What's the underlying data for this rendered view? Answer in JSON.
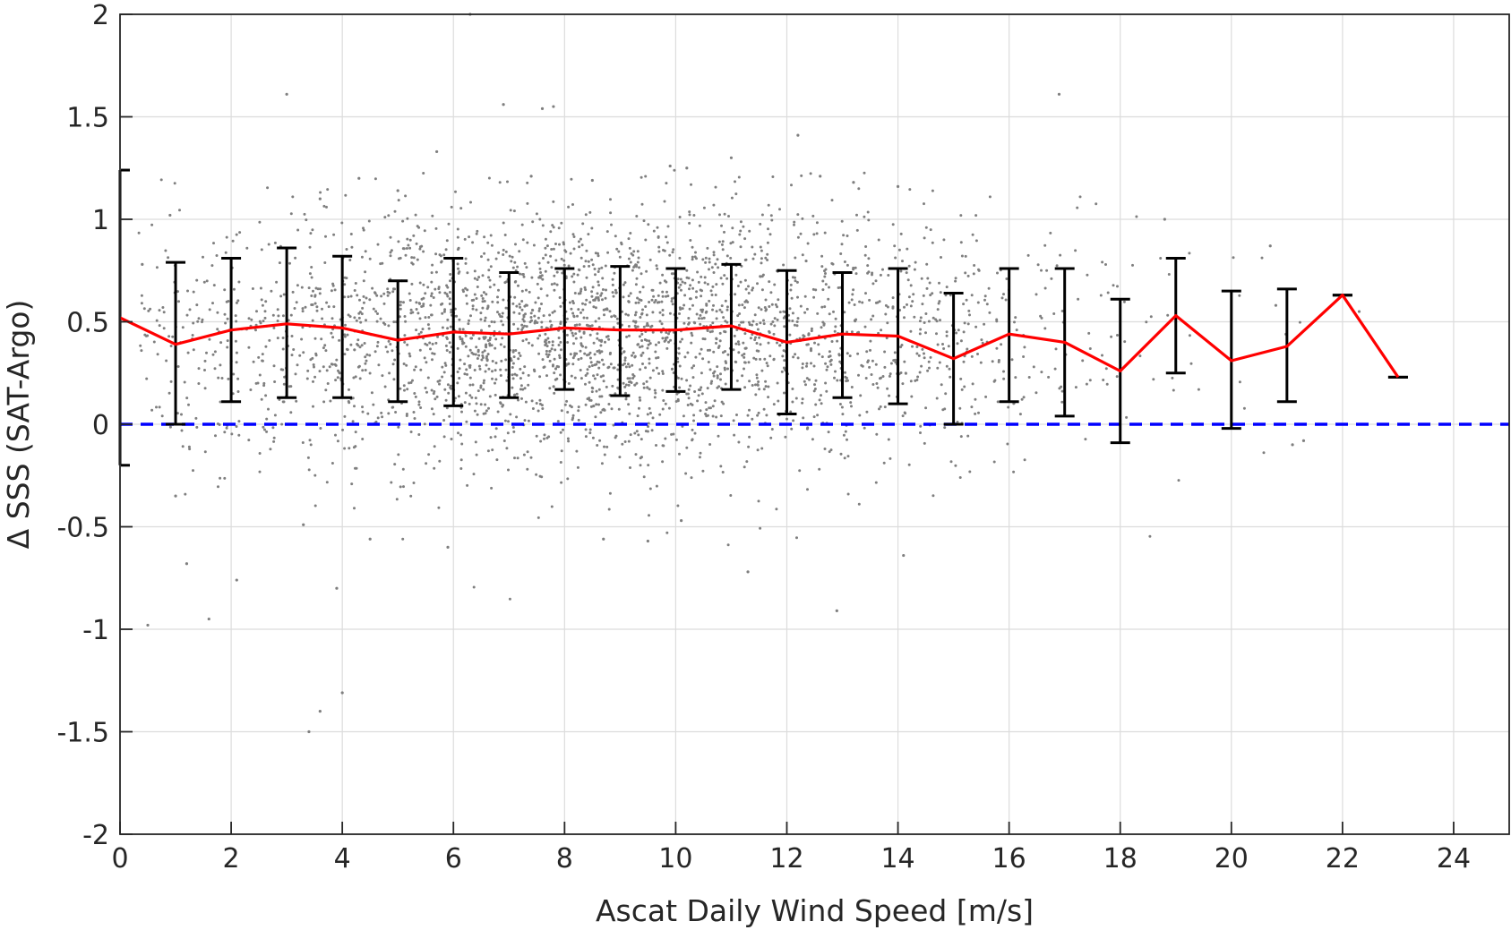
{
  "chart_data": {
    "type": "scatter",
    "xlabel": "Ascat Daily Wind Speed [m/s]",
    "ylabel": "Δ SSS (SAT-Argo)",
    "xlim": [
      0,
      25
    ],
    "ylim": [
      -2,
      2
    ],
    "x_ticks": [
      0,
      2,
      4,
      6,
      8,
      10,
      12,
      14,
      16,
      18,
      20,
      22,
      24
    ],
    "y_ticks": [
      -2,
      -1.5,
      -1,
      -0.5,
      0,
      0.5,
      1,
      1.5,
      2
    ],
    "x_tick_labels": [
      "0",
      "2",
      "4",
      "6",
      "8",
      "10",
      "12",
      "14",
      "16",
      "18",
      "20",
      "22",
      "24"
    ],
    "y_tick_labels": [
      "-2",
      "-1.5",
      "-1",
      "-0.5",
      "0",
      "0.5",
      "1",
      "1.5",
      "2"
    ],
    "grid": true,
    "reference_line": {
      "y": 0,
      "style": "dashed",
      "color": "#0000ff"
    },
    "mean_line": {
      "color": "#ff0000",
      "x": [
        0,
        1,
        2,
        3,
        4,
        5,
        6,
        7,
        8,
        9,
        10,
        11,
        12,
        13,
        14,
        15,
        16,
        17,
        18,
        19,
        20,
        21,
        22,
        23
      ],
      "y": [
        0.52,
        0.39,
        0.46,
        0.49,
        0.47,
        0.41,
        0.45,
        0.44,
        0.47,
        0.46,
        0.46,
        0.48,
        0.4,
        0.44,
        0.43,
        0.32,
        0.44,
        0.4,
        0.26,
        0.53,
        0.31,
        0.38,
        0.63,
        0.23
      ]
    },
    "error_bars": {
      "color": "#000000",
      "x": [
        0,
        1,
        2,
        3,
        4,
        5,
        6,
        7,
        8,
        9,
        10,
        11,
        12,
        13,
        14,
        15,
        16,
        17,
        18,
        19,
        20,
        21,
        22,
        23
      ],
      "lower": [
        -0.2,
        0.0,
        0.11,
        0.13,
        0.13,
        0.11,
        0.09,
        0.13,
        0.17,
        0.14,
        0.16,
        0.17,
        0.05,
        0.13,
        0.1,
        0.0,
        0.11,
        0.04,
        -0.09,
        0.25,
        -0.02,
        0.11,
        0.63,
        0.23
      ],
      "upper": [
        1.24,
        0.79,
        0.81,
        0.86,
        0.82,
        0.7,
        0.81,
        0.74,
        0.76,
        0.77,
        0.76,
        0.78,
        0.75,
        0.74,
        0.76,
        0.64,
        0.76,
        0.76,
        0.61,
        0.81,
        0.65,
        0.66,
        0.63,
        0.23
      ]
    },
    "scatter": {
      "color": "#7f7f7f",
      "points": [
        [
          0.4,
          0.78
        ],
        [
          0.5,
          -0.98
        ],
        [
          0.9,
          1.02
        ],
        [
          1.0,
          -0.35
        ],
        [
          1.2,
          -0.68
        ],
        [
          1.6,
          -0.95
        ],
        [
          2.1,
          -0.76
        ],
        [
          3.0,
          1.61
        ],
        [
          3.3,
          -0.49
        ],
        [
          3.4,
          -1.5
        ],
        [
          3.6,
          -1.4
        ],
        [
          3.9,
          -0.8
        ],
        [
          4.0,
          -1.31
        ],
        [
          4.5,
          -0.56
        ],
        [
          5.9,
          -0.6
        ],
        [
          5.7,
          1.33
        ],
        [
          6.9,
          1.56
        ],
        [
          7.6,
          1.54
        ],
        [
          7.8,
          1.55
        ],
        [
          8.7,
          -0.56
        ],
        [
          9.5,
          -0.57
        ],
        [
          10.1,
          -0.47
        ],
        [
          11.3,
          -0.72
        ],
        [
          12.2,
          1.41
        ],
        [
          12.9,
          -0.91
        ],
        [
          14.1,
          -0.64
        ],
        [
          16.9,
          1.61
        ],
        [
          18.8,
          1.0
        ],
        [
          20.7,
          0.87
        ],
        [
          21.3,
          -0.08
        ],
        [
          6.3,
          2.0
        ],
        [
          21.1,
          -0.1
        ],
        [
          20.8,
          0.58
        ],
        [
          22.3,
          0.55
        ],
        [
          9.9,
          1.26
        ],
        [
          10.2,
          1.25
        ],
        [
          11.0,
          1.3
        ],
        [
          12.6,
          1.21
        ],
        [
          13.2,
          1.18
        ],
        [
          14.0,
          1.16
        ],
        [
          5.0,
          1.14
        ],
        [
          4.3,
          1.2
        ],
        [
          3.6,
          1.1
        ],
        [
          7.4,
          1.21
        ],
        [
          8.5,
          1.19
        ]
      ],
      "generated_cloud": {
        "count": 3000,
        "center_y": 0.44,
        "spread_y": 0.32,
        "x_range": [
          0.3,
          21.6
        ],
        "x_peak": 8.5
      }
    }
  }
}
